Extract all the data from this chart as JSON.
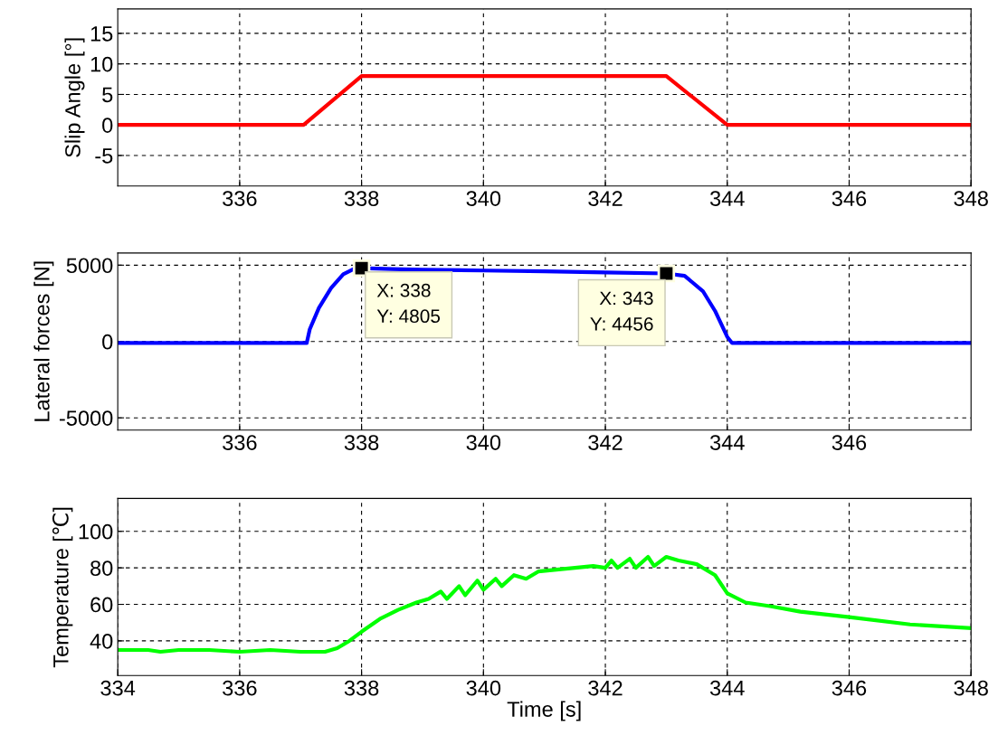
{
  "chart_data": [
    {
      "type": "line",
      "ylabel": "Slip Angle [°]",
      "x": [
        334,
        337.05,
        338,
        343,
        344,
        348
      ],
      "series": [
        {
          "color": "#ff0000",
          "values": [
            0,
            0,
            8,
            8,
            0,
            0
          ]
        }
      ],
      "xlim": [
        334,
        348
      ],
      "xticks": [
        336,
        338,
        340,
        342,
        344,
        346,
        348
      ],
      "ylim": [
        -10,
        19
      ],
      "yticks": [
        -5,
        0,
        5,
        10,
        15
      ],
      "grid": true,
      "marker": "none",
      "line_style": "solid"
    },
    {
      "type": "line",
      "ylabel": "Lateral forces [N]",
      "x": [
        334,
        337.1,
        337.15,
        337.3,
        337.5,
        337.7,
        337.9,
        338,
        338.5,
        339,
        340,
        341,
        342,
        343,
        343.3,
        343.6,
        343.8,
        344,
        344.08,
        348
      ],
      "series": [
        {
          "color": "#0000ff",
          "values": [
            -100,
            -100,
            800,
            2200,
            3500,
            4400,
            4800,
            4805,
            4750,
            4700,
            4650,
            4600,
            4520,
            4456,
            4300,
            3300,
            2000,
            300,
            -100,
            -100
          ]
        }
      ],
      "xlim": [
        334,
        348
      ],
      "xticks": [
        336,
        338,
        340,
        342,
        344,
        346
      ],
      "ylim": [
        -5800,
        5800
      ],
      "yticks": [
        -5000,
        0,
        5000
      ],
      "grid": true,
      "marker": "none",
      "line_style": "solid",
      "annotations": [
        {
          "text": "X: 338\nY: 4805",
          "x": 338,
          "y": 4805
        },
        {
          "text": "X: 343\nY: 4456",
          "x": 343,
          "y": 4456
        }
      ]
    },
    {
      "type": "line",
      "ylabel": "Temperature [℃]",
      "xlabel": "Time [s]",
      "x": [
        334,
        334.5,
        334.7,
        335,
        335.5,
        336,
        336.5,
        337,
        337.4,
        337.6,
        337.8,
        338,
        338.3,
        338.6,
        338.9,
        339.1,
        339.3,
        339.4,
        339.6,
        339.7,
        339.9,
        340,
        340.2,
        340.3,
        340.5,
        340.7,
        340.9,
        341.2,
        341.5,
        341.8,
        342,
        342.1,
        342.2,
        342.4,
        342.5,
        342.7,
        342.8,
        343,
        343.2,
        343.5,
        343.8,
        344,
        344.3,
        344.7,
        345.2,
        346,
        347,
        348
      ],
      "series": [
        {
          "color": "#00ff00",
          "values": [
            35,
            35,
            34,
            35,
            35,
            34,
            35,
            34,
            34,
            36,
            40,
            45,
            52,
            57,
            61,
            63,
            67,
            63,
            70,
            65,
            73,
            68,
            74,
            70,
            76,
            74,
            78,
            79,
            80,
            81,
            80,
            84,
            80,
            85,
            80,
            86,
            81,
            86,
            84,
            82,
            76,
            66,
            61,
            59,
            56,
            53,
            49,
            47
          ]
        }
      ],
      "xlim": [
        334,
        348
      ],
      "xticks": [
        334,
        336,
        338,
        340,
        342,
        344,
        346,
        348
      ],
      "ylim": [
        21,
        118
      ],
      "yticks": [
        40,
        60,
        80,
        100
      ],
      "grid": true,
      "marker": "none",
      "line_style": "solid"
    }
  ]
}
